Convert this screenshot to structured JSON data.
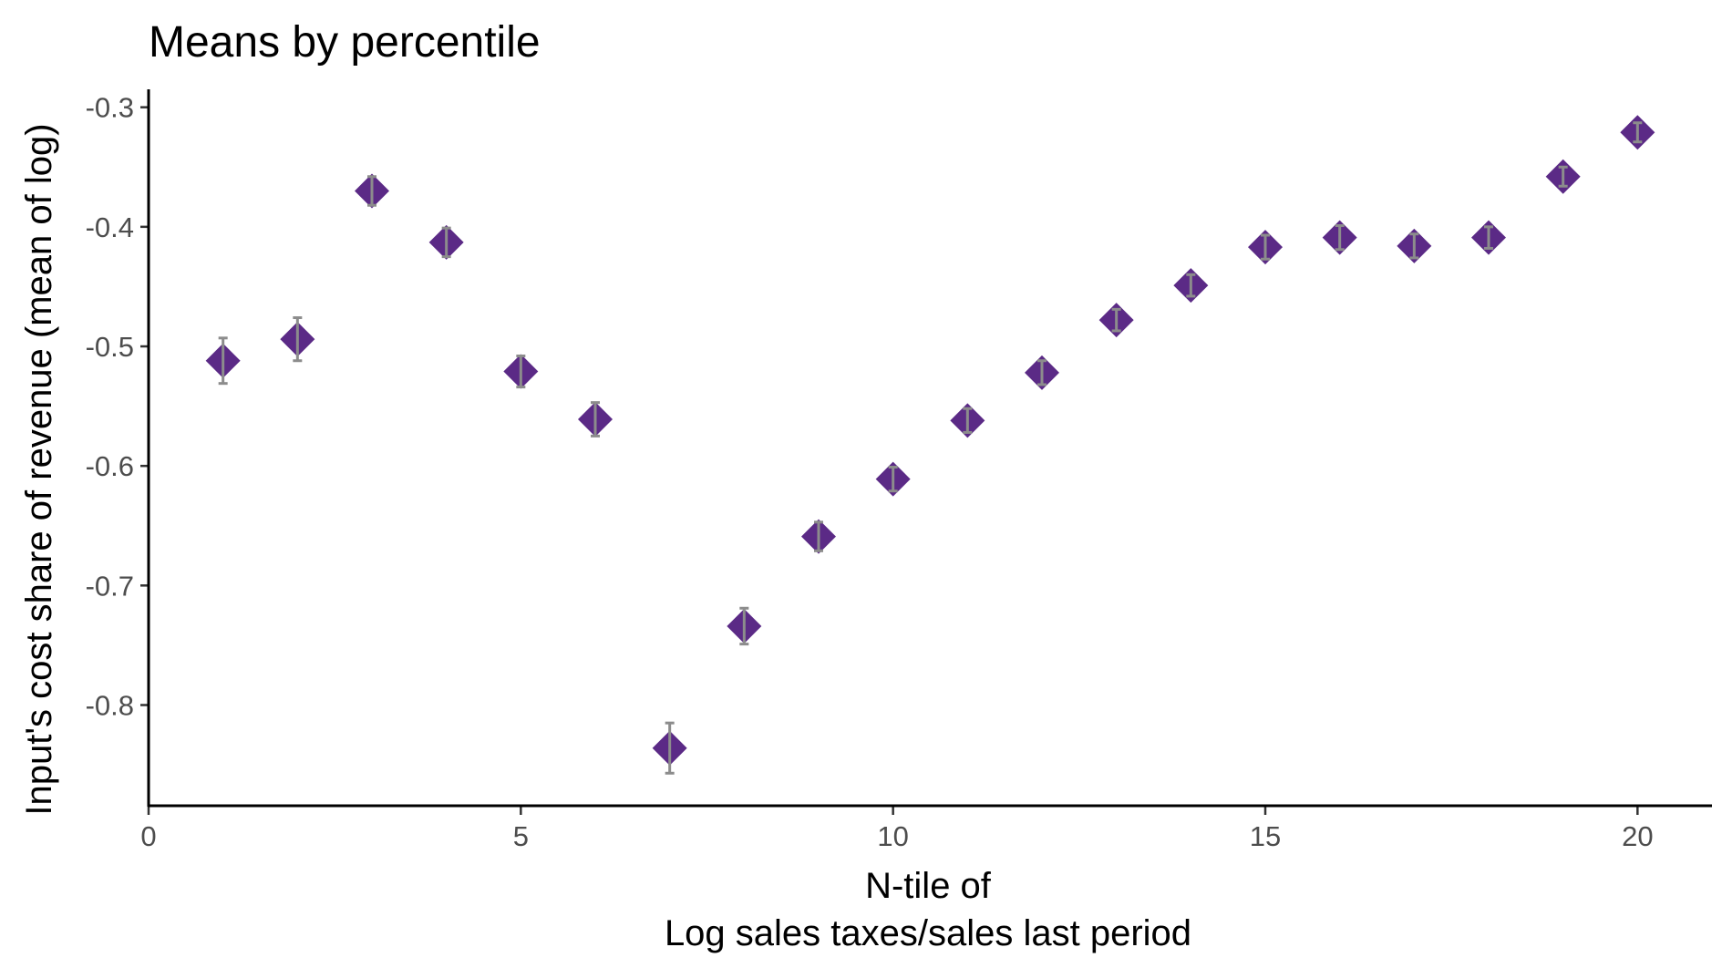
{
  "chart_data": {
    "type": "scatter",
    "title": "Means by percentile",
    "xlabel": [
      "N-tile of",
      "Log sales taxes/sales last period"
    ],
    "ylabel": "Input's cost share of revenue (mean of log)",
    "xlim": [
      0,
      21
    ],
    "ylim": [
      -0.885,
      -0.285
    ],
    "xticks": [
      0,
      5,
      10,
      15,
      20
    ],
    "xtick_labels": [
      "0",
      "5",
      "10",
      "15",
      "20"
    ],
    "yticks": [
      -0.3,
      -0.4,
      -0.5,
      -0.6,
      -0.7,
      -0.8
    ],
    "ytick_labels": [
      "-0.3",
      "-0.4",
      "-0.5",
      "-0.6",
      "-0.7",
      "-0.8"
    ],
    "grid": false,
    "legend": "none",
    "colors": {
      "marker": "#5b2a86",
      "errorbar": "#8c8c8c",
      "axis": "#000000",
      "tick_label": "#4d4d4d"
    },
    "series": [
      {
        "marker": "diamond",
        "points": [
          {
            "x": 1,
            "y": -0.512,
            "lo": -0.531,
            "hi": -0.493
          },
          {
            "x": 2,
            "y": -0.494,
            "lo": -0.512,
            "hi": -0.476
          },
          {
            "x": 3,
            "y": -0.37,
            "lo": -0.382,
            "hi": -0.358
          },
          {
            "x": 4,
            "y": -0.413,
            "lo": -0.425,
            "hi": -0.401
          },
          {
            "x": 5,
            "y": -0.521,
            "lo": -0.534,
            "hi": -0.508
          },
          {
            "x": 6,
            "y": -0.561,
            "lo": -0.575,
            "hi": -0.547
          },
          {
            "x": 7,
            "y": -0.836,
            "lo": -0.857,
            "hi": -0.815
          },
          {
            "x": 8,
            "y": -0.734,
            "lo": -0.749,
            "hi": -0.719
          },
          {
            "x": 9,
            "y": -0.659,
            "lo": -0.671,
            "hi": -0.647
          },
          {
            "x": 10,
            "y": -0.611,
            "lo": -0.621,
            "hi": -0.601
          },
          {
            "x": 11,
            "y": -0.562,
            "lo": -0.572,
            "hi": -0.552
          },
          {
            "x": 12,
            "y": -0.522,
            "lo": -0.532,
            "hi": -0.512
          },
          {
            "x": 13,
            "y": -0.478,
            "lo": -0.487,
            "hi": -0.469
          },
          {
            "x": 14,
            "y": -0.449,
            "lo": -0.458,
            "hi": -0.44
          },
          {
            "x": 15,
            "y": -0.417,
            "lo": -0.427,
            "hi": -0.407
          },
          {
            "x": 16,
            "y": -0.409,
            "lo": -0.419,
            "hi": -0.399
          },
          {
            "x": 17,
            "y": -0.416,
            "lo": -0.426,
            "hi": -0.406
          },
          {
            "x": 18,
            "y": -0.409,
            "lo": -0.418,
            "hi": -0.4
          },
          {
            "x": 19,
            "y": -0.358,
            "lo": -0.366,
            "hi": -0.35
          },
          {
            "x": 20,
            "y": -0.321,
            "lo": -0.329,
            "hi": -0.313
          }
        ]
      }
    ]
  }
}
